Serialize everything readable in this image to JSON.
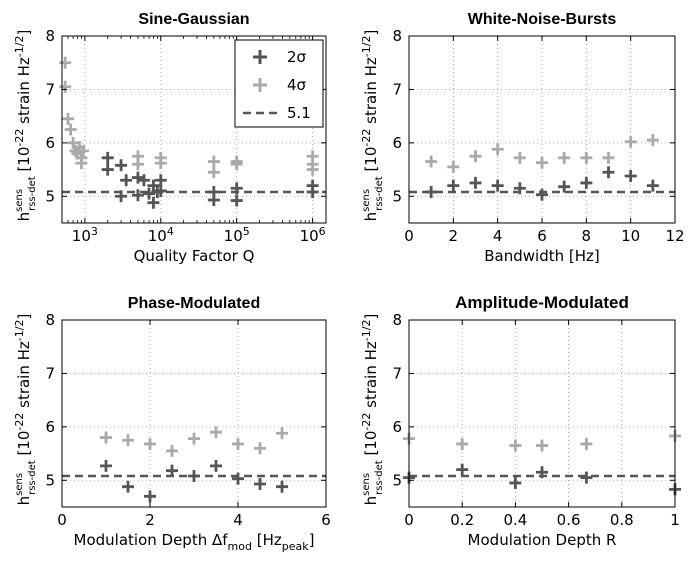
{
  "figure": {
    "ylabel_main": "h",
    "ylabel_sup": "sens",
    "ylabel_sub": "rss-det",
    "ylabel_units": " [10",
    "ylabel_exp": "-22",
    "ylabel_units2": " strain Hz",
    "ylabel_exp2": "-1/2",
    "ylabel_close": "]"
  },
  "colors": {
    "sigma2": "#555555",
    "sigma4": "#aaaaaa",
    "threshold": "#555555"
  },
  "chart_data": [
    {
      "type": "scatter",
      "title": "Sine-Gaussian",
      "xscale": "log",
      "xlabel": "Quality Factor Q",
      "xlim": [
        500,
        1500000
      ],
      "ylim": [
        4.5,
        8
      ],
      "xticks": [
        {
          "v": 1000,
          "base": "10",
          "exp": "3"
        },
        {
          "v": 10000,
          "base": "10",
          "exp": "4"
        },
        {
          "v": 100000,
          "base": "10",
          "exp": "5"
        },
        {
          "v": 1000000,
          "base": "10",
          "exp": "6"
        }
      ],
      "yticks": [
        5,
        6,
        7,
        8
      ],
      "threshold": 5.08,
      "legend": {
        "position": "top-right",
        "entries": [
          "2σ",
          "4σ",
          "5.1"
        ]
      },
      "series": [
        {
          "name": "2σ",
          "points": [
            [
              2000,
              5.72
            ],
            [
              2000,
              5.5
            ],
            [
              3000,
              5.58
            ],
            [
              3000,
              5.0
            ],
            [
              3500,
              5.3
            ],
            [
              5000,
              5.02
            ],
            [
              5000,
              5.35
            ],
            [
              6000,
              5.3
            ],
            [
              7000,
              5.05
            ],
            [
              8000,
              4.88
            ],
            [
              8000,
              5.2
            ],
            [
              9000,
              5.08
            ],
            [
              10000,
              5.1
            ],
            [
              10000,
              5.3
            ],
            [
              50000,
              5.08
            ],
            [
              50000,
              4.93
            ],
            [
              100000,
              5.15
            ],
            [
              100000,
              4.92
            ],
            [
              1000000,
              5.08
            ],
            [
              1000000,
              5.2
            ]
          ]
        },
        {
          "name": "4σ",
          "points": [
            [
              550,
              7.5
            ],
            [
              550,
              7.05
            ],
            [
              600,
              6.45
            ],
            [
              650,
              6.25
            ],
            [
              700,
              6.0
            ],
            [
              750,
              5.85
            ],
            [
              800,
              5.8
            ],
            [
              850,
              5.92
            ],
            [
              900,
              5.72
            ],
            [
              900,
              5.62
            ],
            [
              950,
              5.85
            ],
            [
              5000,
              5.75
            ],
            [
              5000,
              5.6
            ],
            [
              10000,
              5.72
            ],
            [
              10000,
              5.62
            ],
            [
              50000,
              5.65
            ],
            [
              50000,
              5.45
            ],
            [
              100000,
              5.65
            ],
            [
              100000,
              5.6
            ],
            [
              1000000,
              5.75
            ],
            [
              1000000,
              5.6
            ],
            [
              1000000,
              5.5
            ]
          ]
        }
      ]
    },
    {
      "type": "scatter",
      "title": "White-Noise-Bursts",
      "xscale": "linear",
      "xlabel": "Bandwidth [Hz]",
      "xlim": [
        0,
        12
      ],
      "ylim": [
        4.5,
        8
      ],
      "xticks": [
        0,
        2,
        4,
        6,
        8,
        10,
        12
      ],
      "yticks": [
        5,
        6,
        7,
        8
      ],
      "threshold": 5.08,
      "series": [
        {
          "name": "2σ",
          "points": [
            [
              1,
              5.08
            ],
            [
              2,
              5.2
            ],
            [
              3,
              5.25
            ],
            [
              4,
              5.2
            ],
            [
              5,
              5.15
            ],
            [
              6,
              5.03
            ],
            [
              7,
              5.18
            ],
            [
              8,
              5.25
            ],
            [
              9,
              5.45
            ],
            [
              10,
              5.38
            ],
            [
              11,
              5.2
            ]
          ]
        },
        {
          "name": "4σ",
          "points": [
            [
              1,
              5.65
            ],
            [
              2,
              5.55
            ],
            [
              3,
              5.75
            ],
            [
              4,
              5.88
            ],
            [
              5,
              5.72
            ],
            [
              6,
              5.63
            ],
            [
              7,
              5.72
            ],
            [
              8,
              5.72
            ],
            [
              9,
              5.72
            ],
            [
              10,
              6.02
            ],
            [
              11,
              6.05
            ]
          ]
        }
      ]
    },
    {
      "type": "scatter",
      "title": "Phase-Modulated",
      "xscale": "linear",
      "xlabel_parts": {
        "pre": "Modulation Depth Δf",
        "sub": "mod",
        "mid": " [Hz",
        "sub2": "peak",
        "post": "]"
      },
      "xlim": [
        0,
        6
      ],
      "ylim": [
        4.5,
        8
      ],
      "xticks": [
        0,
        2,
        4,
        6
      ],
      "yticks": [
        5,
        6,
        7,
        8
      ],
      "threshold": 5.08,
      "series": [
        {
          "name": "2σ",
          "points": [
            [
              1,
              5.27
            ],
            [
              1.5,
              4.88
            ],
            [
              2,
              4.7
            ],
            [
              2.5,
              5.18
            ],
            [
              3,
              5.08
            ],
            [
              3.5,
              5.27
            ],
            [
              4,
              5.03
            ],
            [
              4.5,
              4.93
            ],
            [
              5,
              4.88
            ]
          ]
        },
        {
          "name": "4σ",
          "points": [
            [
              1,
              5.8
            ],
            [
              1.5,
              5.75
            ],
            [
              2,
              5.68
            ],
            [
              2.5,
              5.55
            ],
            [
              3,
              5.78
            ],
            [
              3.5,
              5.9
            ],
            [
              4,
              5.68
            ],
            [
              4.5,
              5.6
            ],
            [
              5,
              5.88
            ]
          ]
        }
      ]
    },
    {
      "type": "scatter",
      "title": "Amplitude-Modulated",
      "xscale": "linear",
      "xlabel": "Modulation Depth R",
      "xlim": [
        0,
        1
      ],
      "ylim": [
        4.5,
        8
      ],
      "xticks": [
        0,
        0.2,
        0.4,
        0.6,
        0.8,
        1
      ],
      "yticks": [
        5,
        6,
        7,
        8
      ],
      "threshold": 5.08,
      "series": [
        {
          "name": "2σ",
          "points": [
            [
              0,
              5.05
            ],
            [
              0.2,
              5.2
            ],
            [
              0.4,
              4.95
            ],
            [
              0.5,
              5.15
            ],
            [
              0.667,
              5.05
            ],
            [
              1,
              4.83
            ]
          ]
        },
        {
          "name": "4σ",
          "points": [
            [
              0,
              5.78
            ],
            [
              0.2,
              5.68
            ],
            [
              0.4,
              5.65
            ],
            [
              0.5,
              5.65
            ],
            [
              0.667,
              5.68
            ],
            [
              1,
              5.83
            ]
          ]
        }
      ]
    }
  ]
}
